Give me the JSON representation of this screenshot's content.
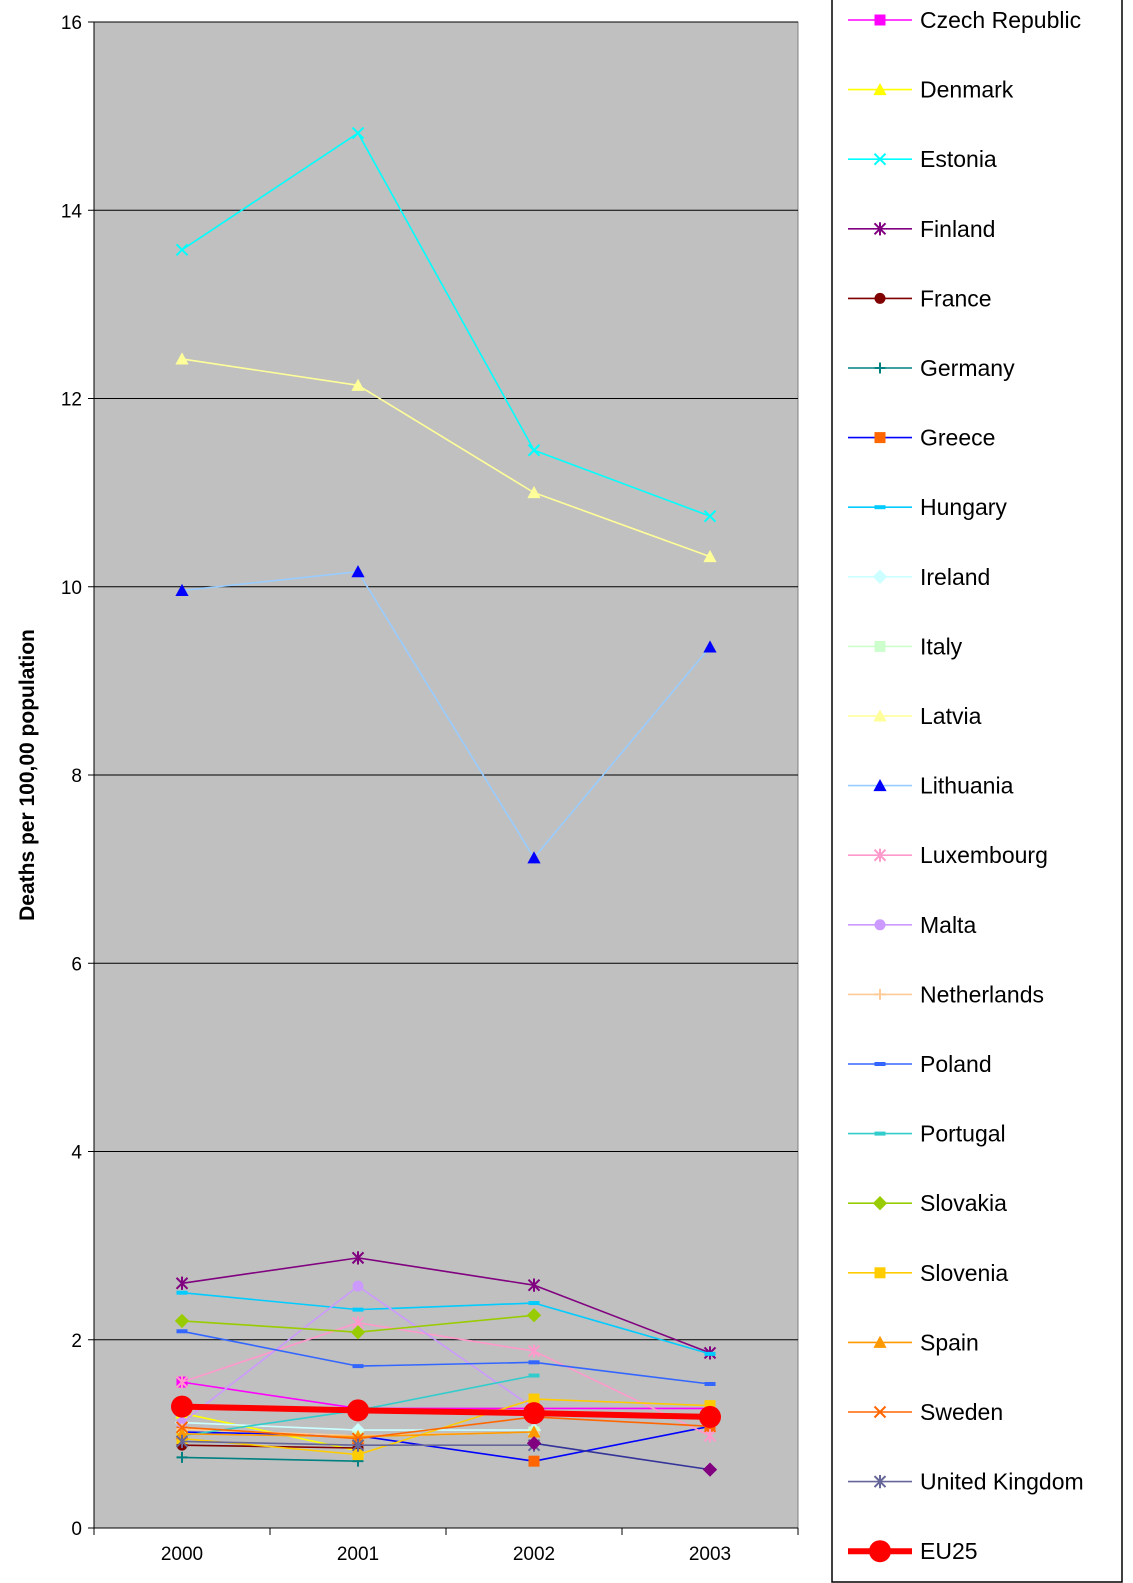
{
  "chart_data": {
    "type": "line",
    "title": "",
    "xlabel": "",
    "ylabel": "Deaths per 100,00 population",
    "ylim": [
      0,
      16
    ],
    "yticks": [
      0,
      2,
      4,
      6,
      8,
      10,
      12,
      14,
      16
    ],
    "categories": [
      "2000",
      "2001",
      "2002",
      "2003"
    ],
    "grid": true,
    "legend_position": "right",
    "series": [
      {
        "name": "Czech Republic",
        "color": "#ff00ff",
        "marker": "square",
        "values": [
          1.55,
          1.27,
          1.27,
          1.27
        ]
      },
      {
        "name": "Denmark",
        "color": "#ffff00",
        "marker": "triangle",
        "values": [
          1.22,
          0.82,
          null,
          null
        ]
      },
      {
        "name": "Estonia",
        "color": "#00ffff",
        "marker": "x",
        "values": [
          13.58,
          14.82,
          11.45,
          10.75
        ]
      },
      {
        "name": "Finland",
        "color": "#800080",
        "marker": "star",
        "values": [
          2.6,
          2.87,
          2.58,
          1.86
        ]
      },
      {
        "name": "France",
        "color": "#800000",
        "marker": "circle",
        "values": [
          0.88,
          0.85,
          null,
          null
        ]
      },
      {
        "name": "Germany",
        "color": "#008080",
        "marker": "plus",
        "values": [
          0.75,
          0.71,
          null,
          null
        ]
      },
      {
        "name": "Greece",
        "color": "#0000ff",
        "marker": "square",
        "markerColor": "#ff6600",
        "values": [
          1.02,
          0.98,
          0.71,
          1.08
        ]
      },
      {
        "name": "Hungary",
        "color": "#00ccff",
        "marker": "dash",
        "values": [
          2.5,
          2.32,
          2.39,
          1.85
        ]
      },
      {
        "name": "Ireland",
        "color": "#ccffff",
        "marker": "diamond",
        "values": [
          1.12,
          1.04,
          1.04,
          null
        ]
      },
      {
        "name": "Italy",
        "color": "#ccffcc",
        "marker": "square",
        "values": [
          1.0,
          0.97,
          1.02,
          null
        ]
      },
      {
        "name": "Latvia",
        "color": "#ffff99",
        "marker": "triangle",
        "values": [
          12.42,
          12.14,
          11.0,
          10.32
        ]
      },
      {
        "name": "Lithuania",
        "color": "#99ccff",
        "marker": "triangle",
        "markerColor": "#0000ff",
        "values": [
          9.96,
          10.16,
          7.12,
          9.36
        ]
      },
      {
        "name": "Luxembourg",
        "color": "#ff99cc",
        "marker": "star",
        "values": [
          1.55,
          2.18,
          1.88,
          0.98
        ]
      },
      {
        "name": "Malta",
        "color": "#cc99ff",
        "marker": "circle",
        "values": [
          1.12,
          2.57,
          1.27,
          null
        ]
      },
      {
        "name": "Netherlands",
        "color": "#ffcc99",
        "marker": "plus",
        "values": [
          1.05,
          0.98,
          1.02,
          null
        ]
      },
      {
        "name": "Poland",
        "color": "#3366ff",
        "marker": "dash",
        "values": [
          2.09,
          1.72,
          1.76,
          1.53
        ]
      },
      {
        "name": "Portugal",
        "color": "#33cccc",
        "marker": "dash",
        "values": [
          0.98,
          1.25,
          1.62,
          null
        ]
      },
      {
        "name": "Slovakia",
        "color": "#99cc00",
        "marker": "diamond",
        "values": [
          2.2,
          2.08,
          2.26,
          null
        ]
      },
      {
        "name": "Slovenia",
        "color": "#ffcc00",
        "marker": "square",
        "values": [
          0.95,
          0.78,
          1.37,
          1.3
        ]
      },
      {
        "name": "Spain",
        "color": "#ff9900",
        "marker": "triangle",
        "values": [
          1.0,
          0.97,
          1.02,
          null
        ]
      },
      {
        "name": "Sweden",
        "color": "#ff6600",
        "marker": "x",
        "values": [
          1.07,
          0.95,
          1.18,
          1.08
        ]
      },
      {
        "name": "United Kingdom",
        "color": "#666699",
        "marker": "star",
        "values": [
          0.92,
          0.88,
          0.88,
          null
        ]
      },
      {
        "name": "",
        "color": "#333399",
        "marker": "diamond",
        "markerColor": "#800080",
        "values": [
          null,
          null,
          0.9,
          0.62
        ]
      },
      {
        "name": "EU25",
        "color": "#ff0000",
        "marker": "circle",
        "thick": true,
        "values": [
          1.29,
          1.25,
          1.22,
          1.18
        ]
      }
    ]
  }
}
